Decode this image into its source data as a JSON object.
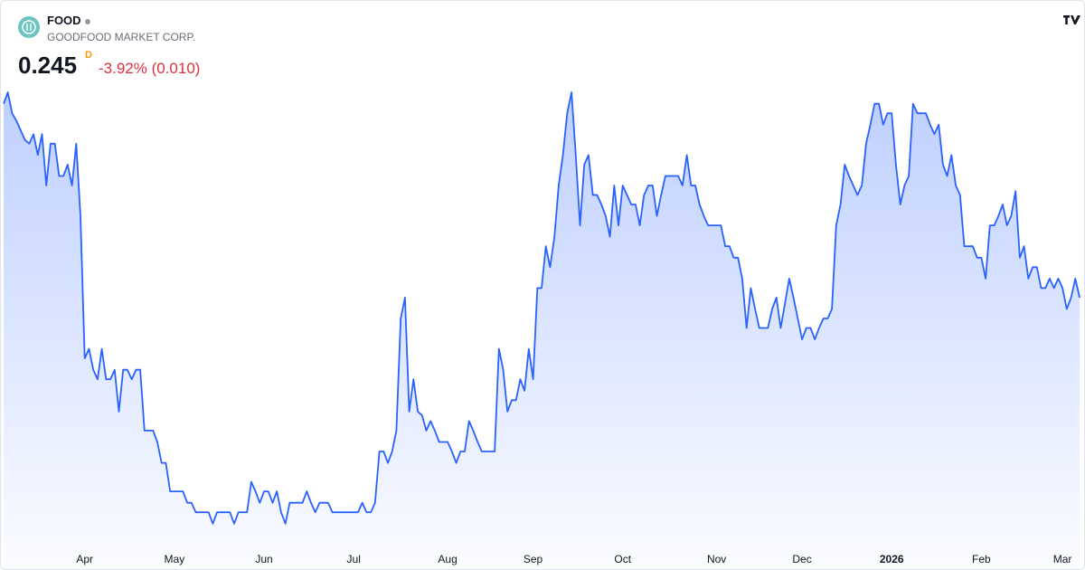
{
  "header": {
    "symbol": "FOOD",
    "name": "GOODFOOD MARKET CORP.",
    "price": "0.245",
    "interval": "D",
    "change": "-3.92% (0.010)"
  },
  "chart_data": {
    "type": "area",
    "color": "#2962ff",
    "ylim": [
      0.1,
      0.36
    ],
    "xlim": [
      0,
      252
    ],
    "xticks": [
      {
        "value": 19,
        "label": "Apr"
      },
      {
        "value": 40,
        "label": "May"
      },
      {
        "value": 61,
        "label": "Jun"
      },
      {
        "value": 82,
        "label": "Jul"
      },
      {
        "value": 104,
        "label": "Aug"
      },
      {
        "value": 124,
        "label": "Sep"
      },
      {
        "value": 145,
        "label": "Oct"
      },
      {
        "value": 167,
        "label": "Nov"
      },
      {
        "value": 187,
        "label": "Dec"
      },
      {
        "value": 208,
        "label": "2026"
      },
      {
        "value": 229,
        "label": "Feb"
      },
      {
        "value": 248,
        "label": "Mar"
      }
    ],
    "values": [
      0.347,
      0.353,
      0.342,
      0.338,
      0.333,
      0.328,
      0.326,
      0.331,
      0.32,
      0.331,
      0.304,
      0.326,
      0.326,
      0.309,
      0.309,
      0.315,
      0.304,
      0.326,
      0.288,
      0.213,
      0.218,
      0.207,
      0.202,
      0.218,
      0.202,
      0.202,
      0.207,
      0.185,
      0.207,
      0.207,
      0.202,
      0.207,
      0.207,
      0.175,
      0.175,
      0.175,
      0.169,
      0.158,
      0.158,
      0.143,
      0.143,
      0.143,
      0.143,
      0.137,
      0.137,
      0.132,
      0.132,
      0.132,
      0.132,
      0.126,
      0.132,
      0.132,
      0.132,
      0.132,
      0.126,
      0.132,
      0.132,
      0.132,
      0.148,
      0.143,
      0.137,
      0.143,
      0.143,
      0.137,
      0.143,
      0.132,
      0.126,
      0.137,
      0.137,
      0.137,
      0.137,
      0.143,
      0.137,
      0.132,
      0.137,
      0.137,
      0.137,
      0.132,
      0.132,
      0.132,
      0.132,
      0.132,
      0.132,
      0.132,
      0.137,
      0.132,
      0.132,
      0.137,
      0.164,
      0.164,
      0.158,
      0.164,
      0.175,
      0.234,
      0.245,
      0.185,
      0.202,
      0.185,
      0.183,
      0.175,
      0.18,
      0.175,
      0.169,
      0.169,
      0.169,
      0.164,
      0.158,
      0.164,
      0.164,
      0.18,
      0.175,
      0.169,
      0.164,
      0.164,
      0.164,
      0.164,
      0.218,
      0.207,
      0.185,
      0.191,
      0.191,
      0.202,
      0.196,
      0.218,
      0.202,
      0.25,
      0.25,
      0.272,
      0.261,
      0.277,
      0.304,
      0.32,
      0.342,
      0.353,
      0.32,
      0.283,
      0.315,
      0.32,
      0.299,
      0.299,
      0.294,
      0.288,
      0.277,
      0.304,
      0.283,
      0.304,
      0.299,
      0.294,
      0.294,
      0.283,
      0.299,
      0.304,
      0.304,
      0.288,
      0.299,
      0.309,
      0.309,
      0.309,
      0.309,
      0.304,
      0.32,
      0.304,
      0.304,
      0.294,
      0.288,
      0.283,
      0.283,
      0.283,
      0.283,
      0.272,
      0.272,
      0.266,
      0.266,
      0.255,
      0.229,
      0.25,
      0.239,
      0.229,
      0.229,
      0.229,
      0.239,
      0.245,
      0.229,
      0.242,
      0.255,
      0.245,
      0.234,
      0.223,
      0.229,
      0.229,
      0.223,
      0.229,
      0.234,
      0.234,
      0.239,
      0.283,
      0.294,
      0.315,
      0.309,
      0.304,
      0.299,
      0.304,
      0.326,
      0.336,
      0.347,
      0.347,
      0.336,
      0.342,
      0.342,
      0.315,
      0.294,
      0.304,
      0.309,
      0.347,
      0.342,
      0.342,
      0.342,
      0.336,
      0.331,
      0.336,
      0.315,
      0.309,
      0.32,
      0.304,
      0.299,
      0.272,
      0.272,
      0.272,
      0.266,
      0.266,
      0.255,
      0.283,
      0.283,
      0.288,
      0.294,
      0.283,
      0.288,
      0.301,
      0.266,
      0.272,
      0.255,
      0.261,
      0.261,
      0.25,
      0.25,
      0.255,
      0.25,
      0.255,
      0.25,
      0.239,
      0.245,
      0.255,
      0.245
    ]
  }
}
